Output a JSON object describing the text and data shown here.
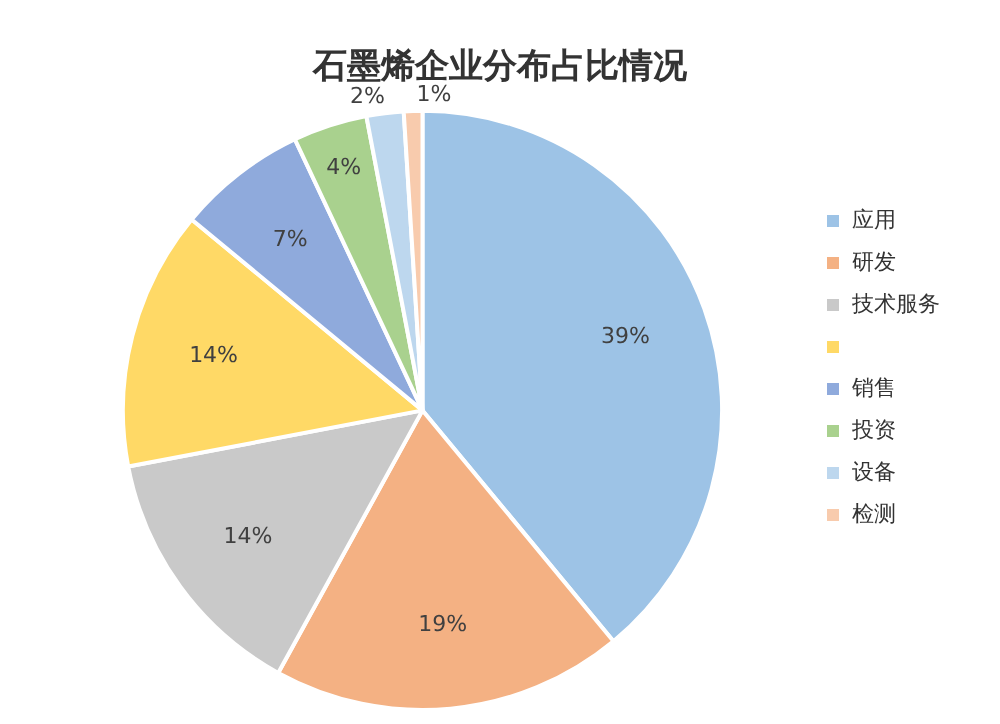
{
  "chart_data": {
    "type": "pie",
    "title": "石墨烯企业分布占比情况",
    "categories": [
      "应用",
      "研发",
      "技术服务",
      null,
      "销售",
      "投资",
      "设备",
      "检测"
    ],
    "values": [
      39,
      19,
      14,
      14,
      7,
      4,
      2,
      1
    ],
    "colors": [
      "#9dc3e6",
      "#f4b183",
      "#c9c9c9",
      "#ffd966",
      "#8faadc",
      "#a9d18e",
      "#bdd7ee",
      "#f8cbad"
    ],
    "value_labels": [
      "39%",
      "19%",
      "14%",
      "14%",
      "7%",
      "4%",
      "2%",
      "1%"
    ],
    "legend": "right"
  }
}
